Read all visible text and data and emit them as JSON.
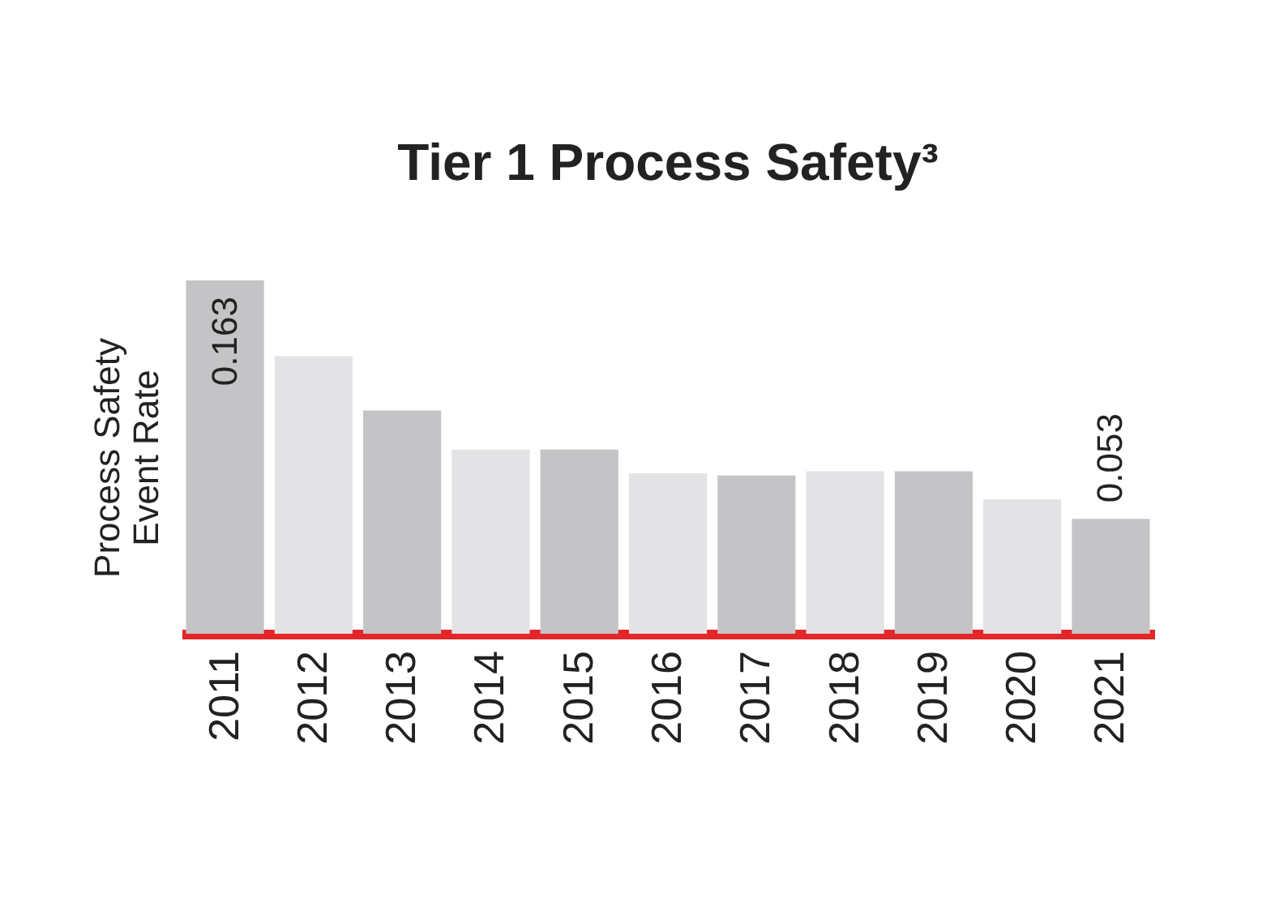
{
  "chart_data": {
    "type": "bar",
    "title": "Tier 1 Process Safety³",
    "ylabel": "Process Safety\nEvent Rate",
    "categories": [
      "2011",
      "2012",
      "2013",
      "2014",
      "2015",
      "2016",
      "2017",
      "2018",
      "2019",
      "2020",
      "2021"
    ],
    "values": [
      0.163,
      0.128,
      0.103,
      0.085,
      0.085,
      0.074,
      0.073,
      0.075,
      0.075,
      0.062,
      0.053
    ],
    "value_labels": [
      "0.163",
      null,
      null,
      null,
      null,
      null,
      null,
      null,
      null,
      null,
      "0.053"
    ],
    "colors": [
      "#c4c4c6",
      "#e3e3e5",
      "#c4c4c6",
      "#e3e3e5",
      "#c4c4c6",
      "#e3e3e5",
      "#c4c4c6",
      "#e3e3e5",
      "#c4c4c6",
      "#e3e3e5",
      "#c4c4c6"
    ],
    "grid": false
  }
}
